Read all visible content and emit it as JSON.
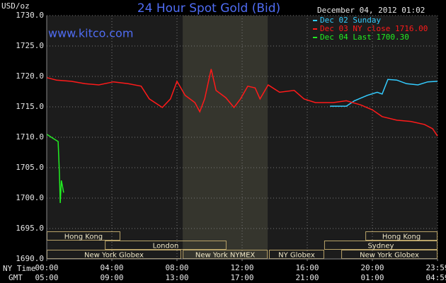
{
  "chart_data": {
    "type": "line",
    "title": "24 Hour Spot Gold (Bid)",
    "y_label": "USD/oz",
    "watermark": "www.kitco.com",
    "timestamp": "December 04, 2012 01:02",
    "x_label": "NY Time",
    "x2_label": "GMT",
    "legend": "upper right",
    "grid": true,
    "xlim": [
      0,
      24
    ],
    "xticks": [
      {
        "value": 0,
        "label": "00:00"
      },
      {
        "value": 4,
        "label": "04:00"
      },
      {
        "value": 8,
        "label": "08:00"
      },
      {
        "value": 12,
        "label": "12:00"
      },
      {
        "value": 16,
        "label": "16:00"
      },
      {
        "value": 20,
        "label": "20:00"
      },
      {
        "value": 24,
        "label": "23:59"
      }
    ],
    "x2ticks": [
      {
        "value": 0,
        "label": "05:00"
      },
      {
        "value": 4,
        "label": "09:00"
      },
      {
        "value": 8,
        "label": "13:00"
      },
      {
        "value": 12,
        "label": "17:00"
      },
      {
        "value": 16,
        "label": "21:00"
      },
      {
        "value": 20,
        "label": "01:00"
      },
      {
        "value": 24,
        "label": "04:59"
      }
    ],
    "ylim": [
      1690,
      1730
    ],
    "yticks": [
      {
        "value": 1690,
        "label": "1690.0"
      },
      {
        "value": 1695,
        "label": "1695.0"
      },
      {
        "value": 1700,
        "label": "1700.0"
      },
      {
        "value": 1705,
        "label": "1705.0"
      },
      {
        "value": 1710,
        "label": "1710.0"
      },
      {
        "value": 1715,
        "label": "1715.0"
      },
      {
        "value": 1720,
        "label": "1720.0"
      },
      {
        "value": 1725,
        "label": "1725.0"
      },
      {
        "value": 1730,
        "label": "1730.0"
      }
    ],
    "shaded": [
      8.35,
      13.57
    ],
    "sessions": [
      [
        {
          "label": "Hong Kong",
          "start": 0,
          "end": 4.52
        },
        {
          "label": "Hong Kong",
          "start": 19.57,
          "end": 24
        }
      ],
      [
        {
          "label": "London",
          "start": 3.57,
          "end": 11.04
        },
        {
          "label": "Sydney",
          "start": 17.04,
          "end": 24
        }
      ],
      [
        {
          "label": "New York Globex",
          "start": 0,
          "end": 8.26
        },
        {
          "label": "New York NYMEX",
          "start": 8.35,
          "end": 13.57
        },
        {
          "label": "NY Globex",
          "start": 13.65,
          "end": 17.04
        },
        {
          "label": "New York Globex",
          "start": 18.09,
          "end": 24
        }
      ]
    ],
    "series": [
      {
        "name": "Dec 02 Sunday",
        "color": "#33ccff",
        "x": [
          17.4,
          18.4,
          18.9,
          19.7,
          20.3,
          20.6,
          20.95,
          21.5,
          22.1,
          22.8,
          23.4,
          24
        ],
        "values": [
          1715.1,
          1715.1,
          1716.0,
          1716.9,
          1717.4,
          1717.1,
          1719.5,
          1719.4,
          1718.8,
          1718.6,
          1719.1,
          1719.2
        ]
      },
      {
        "name": "Dec 03 NY close 1716.00",
        "color": "#ff1a1a",
        "x": [
          0,
          0.6,
          1.5,
          2.35,
          3.2,
          4.1,
          5,
          5.8,
          6.3,
          7.1,
          7.6,
          8,
          8.5,
          9.1,
          9.4,
          9.7,
          10.1,
          10.4,
          11,
          11.5,
          11.9,
          12.35,
          12.8,
          13.1,
          13.6,
          14.3,
          15.2,
          15.8,
          16.5,
          17.6,
          18.4,
          19.3,
          20,
          20.6,
          21.5,
          22.35,
          23.2,
          23.7,
          24
        ],
        "values": [
          1719.8,
          1719.4,
          1719.2,
          1718.8,
          1718.6,
          1719.1,
          1718.8,
          1718.4,
          1716.3,
          1714.9,
          1716.3,
          1719.2,
          1716.9,
          1715.7,
          1714.2,
          1716.3,
          1721.2,
          1717.7,
          1716.5,
          1714.9,
          1716.3,
          1718.4,
          1718.1,
          1716.3,
          1718.6,
          1717.4,
          1717.7,
          1716.3,
          1715.7,
          1715.7,
          1716.0,
          1715.3,
          1714.5,
          1713.4,
          1712.8,
          1712.6,
          1712.1,
          1711.4,
          1710.2
        ]
      },
      {
        "name": "Dec 04 Last 1700.30",
        "color": "#22ee22",
        "x": [
          0,
          0.4,
          0.7,
          0.78,
          0.83,
          0.9,
          1.04
        ],
        "values": [
          1710.5,
          1709.8,
          1709.3,
          1704.1,
          1699.2,
          1702.9,
          1700.9
        ]
      }
    ]
  }
}
